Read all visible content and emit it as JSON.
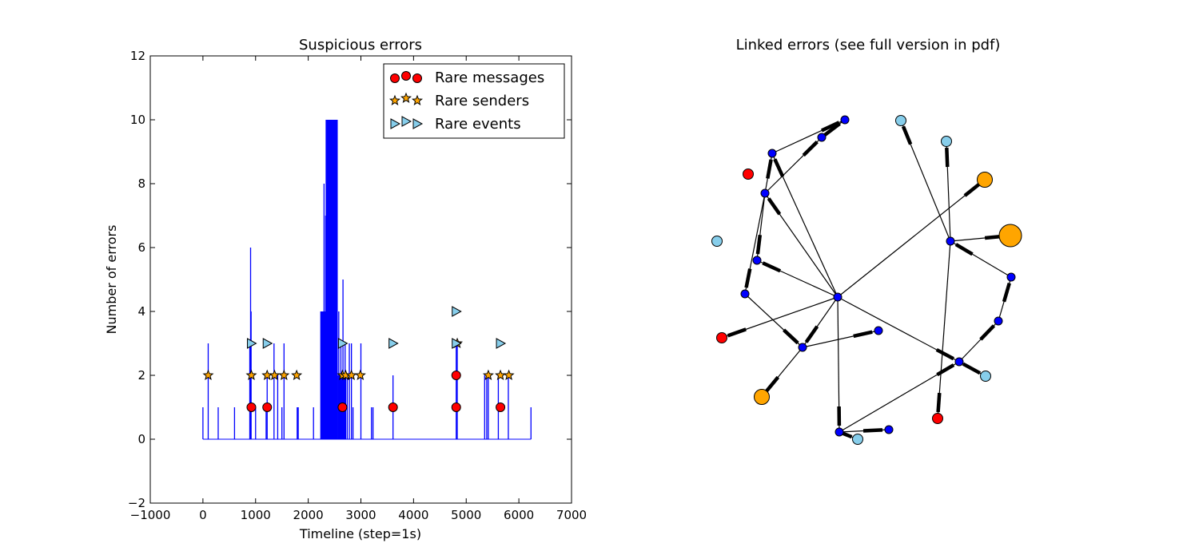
{
  "chart_data": [
    {
      "type": "line",
      "title": "Suspicious errors",
      "xlabel": "Timeline (step=1s)",
      "ylabel": "Number of errors",
      "xlim": [
        -1000,
        7000
      ],
      "ylim": [
        -2,
        12
      ],
      "xticks": [
        -1000,
        0,
        1000,
        2000,
        3000,
        4000,
        5000,
        6000,
        7000
      ],
      "yticks": [
        -2,
        0,
        2,
        4,
        6,
        8,
        10,
        12
      ],
      "grid": false,
      "legend_position": "top-right",
      "colors": {
        "timeline": "#0000ff",
        "rare_messages": "#ff0000",
        "rare_senders": "#ffa500",
        "rare_events": "#87ceeb"
      },
      "timeline_series": {
        "name": "errors",
        "baseline": 0,
        "x_end": 6230,
        "spikes": [
          [
            0,
            1
          ],
          [
            100,
            3
          ],
          [
            290,
            1
          ],
          [
            600,
            1
          ],
          [
            890,
            3
          ],
          [
            905,
            6
          ],
          [
            915,
            4
          ],
          [
            1000,
            1
          ],
          [
            1200,
            1
          ],
          [
            1220,
            2
          ],
          [
            1350,
            3
          ],
          [
            1420,
            2
          ],
          [
            1500,
            1
          ],
          [
            1540,
            3
          ],
          [
            1790,
            1
          ],
          [
            1810,
            1
          ],
          [
            2100,
            1
          ],
          [
            2240,
            4
          ],
          [
            2260,
            4
          ],
          [
            2300,
            8
          ],
          [
            2330,
            7
          ],
          [
            2360,
            10
          ],
          [
            2390,
            10
          ],
          [
            2420,
            10
          ],
          [
            2450,
            10
          ],
          [
            2480,
            10
          ],
          [
            2500,
            5
          ],
          [
            2540,
            5
          ],
          [
            2580,
            4
          ],
          [
            2620,
            3
          ],
          [
            2660,
            5
          ],
          [
            2700,
            3
          ],
          [
            2740,
            2
          ],
          [
            2780,
            3
          ],
          [
            2820,
            3
          ],
          [
            2850,
            1
          ],
          [
            3000,
            3
          ],
          [
            3200,
            1
          ],
          [
            3230,
            1
          ],
          [
            3610,
            2
          ],
          [
            4810,
            3
          ],
          [
            4830,
            3
          ],
          [
            5350,
            2
          ],
          [
            5390,
            2
          ],
          [
            5420,
            2
          ],
          [
            5610,
            2
          ],
          [
            5800,
            2
          ],
          [
            6230,
            1
          ]
        ],
        "dense_blocks": [
          {
            "x0": 2230,
            "x1": 2330,
            "y": 4
          },
          {
            "x0": 2330,
            "x1": 2560,
            "y": 10
          },
          {
            "x0": 2560,
            "x1": 2720,
            "y": 2
          }
        ]
      },
      "series": [
        {
          "name": "Rare messages",
          "marker": "circle",
          "points": [
            [
              920,
              1
            ],
            [
              1220,
              1
            ],
            [
              2650,
              1
            ],
            [
              3610,
              1
            ],
            [
              4810,
              1
            ],
            [
              4810,
              2
            ],
            [
              5650,
              1
            ]
          ]
        },
        {
          "name": "Rare senders",
          "marker": "star",
          "points": [
            [
              100,
              2
            ],
            [
              920,
              2
            ],
            [
              1220,
              2
            ],
            [
              1360,
              2
            ],
            [
              1540,
              2
            ],
            [
              1780,
              2
            ],
            [
              2650,
              2
            ],
            [
              2710,
              2
            ],
            [
              2820,
              2
            ],
            [
              2990,
              2
            ],
            [
              4830,
              3
            ],
            [
              5420,
              2
            ],
            [
              5650,
              2
            ],
            [
              5810,
              2
            ]
          ]
        },
        {
          "name": "Rare events",
          "marker": "triangle-right",
          "points": [
            [
              920,
              3
            ],
            [
              1220,
              3
            ],
            [
              2650,
              3
            ],
            [
              3610,
              3
            ],
            [
              4810,
              3
            ],
            [
              4810,
              4
            ],
            [
              5650,
              3
            ]
          ]
        }
      ]
    },
    {
      "type": "network",
      "title": "Linked errors (see full version in pdf)",
      "node_colors": {
        "small": "#0000ff",
        "messages": "#ff0000",
        "senders": "#ffa500",
        "events": "#87ceeb"
      },
      "nodes": [
        {
          "id": "hub",
          "kind": "small"
        },
        {
          "id": "r_hub",
          "kind": "small"
        },
        {
          "id": "tl_mid",
          "kind": "small"
        },
        {
          "id": "tl_top",
          "kind": "small"
        },
        {
          "id": "top_a",
          "kind": "small"
        },
        {
          "id": "top_b",
          "kind": "small"
        },
        {
          "id": "left_a",
          "kind": "small"
        },
        {
          "id": "left_b",
          "kind": "small"
        },
        {
          "id": "low_c",
          "kind": "small"
        },
        {
          "id": "low_d",
          "kind": "small"
        },
        {
          "id": "low_right",
          "kind": "small"
        },
        {
          "id": "right_a",
          "kind": "small"
        },
        {
          "id": "right_b",
          "kind": "small"
        },
        {
          "id": "bot_a",
          "kind": "small"
        },
        {
          "id": "bot_b",
          "kind": "small"
        },
        {
          "id": "red_tl",
          "kind": "messages"
        },
        {
          "id": "red_l",
          "kind": "messages"
        },
        {
          "id": "red_b",
          "kind": "messages"
        },
        {
          "id": "org_tr",
          "kind": "senders",
          "size": "medium"
        },
        {
          "id": "org_r",
          "kind": "senders",
          "size": "large"
        },
        {
          "id": "org_bl",
          "kind": "senders",
          "size": "medium"
        },
        {
          "id": "lb_top",
          "kind": "events"
        },
        {
          "id": "lb_top2",
          "kind": "events"
        },
        {
          "id": "lb_left",
          "kind": "events"
        },
        {
          "id": "lb_right",
          "kind": "events"
        },
        {
          "id": "lb_bot",
          "kind": "events"
        }
      ],
      "edges": [
        [
          "hub",
          "org_tr"
        ],
        [
          "hub",
          "tl_mid"
        ],
        [
          "hub",
          "left_a"
        ],
        [
          "hub",
          "red_l"
        ],
        [
          "hub",
          "low_c"
        ],
        [
          "hub",
          "low_right"
        ],
        [
          "hub",
          "bot_a"
        ],
        [
          "hub",
          "tl_top"
        ],
        [
          "tl_mid",
          "tl_top"
        ],
        [
          "tl_mid",
          "top_a"
        ],
        [
          "tl_mid",
          "left_b"
        ],
        [
          "tl_mid",
          "left_a"
        ],
        [
          "tl_top",
          "top_b"
        ],
        [
          "top_a",
          "top_b"
        ],
        [
          "left_b",
          "low_c"
        ],
        [
          "low_c",
          "low_d"
        ],
        [
          "low_c",
          "org_bl"
        ],
        [
          "bot_a",
          "bot_b"
        ],
        [
          "bot_a",
          "low_right"
        ],
        [
          "low_right",
          "lb_right"
        ],
        [
          "low_right",
          "right_b"
        ],
        [
          "right_b",
          "right_a"
        ],
        [
          "right_a",
          "r_hub"
        ],
        [
          "r_hub",
          "lb_top"
        ],
        [
          "r_hub",
          "lb_top2"
        ],
        [
          "r_hub",
          "org_r"
        ],
        [
          "r_hub",
          "red_b"
        ],
        [
          "bot_a",
          "lb_bot"
        ]
      ]
    }
  ]
}
